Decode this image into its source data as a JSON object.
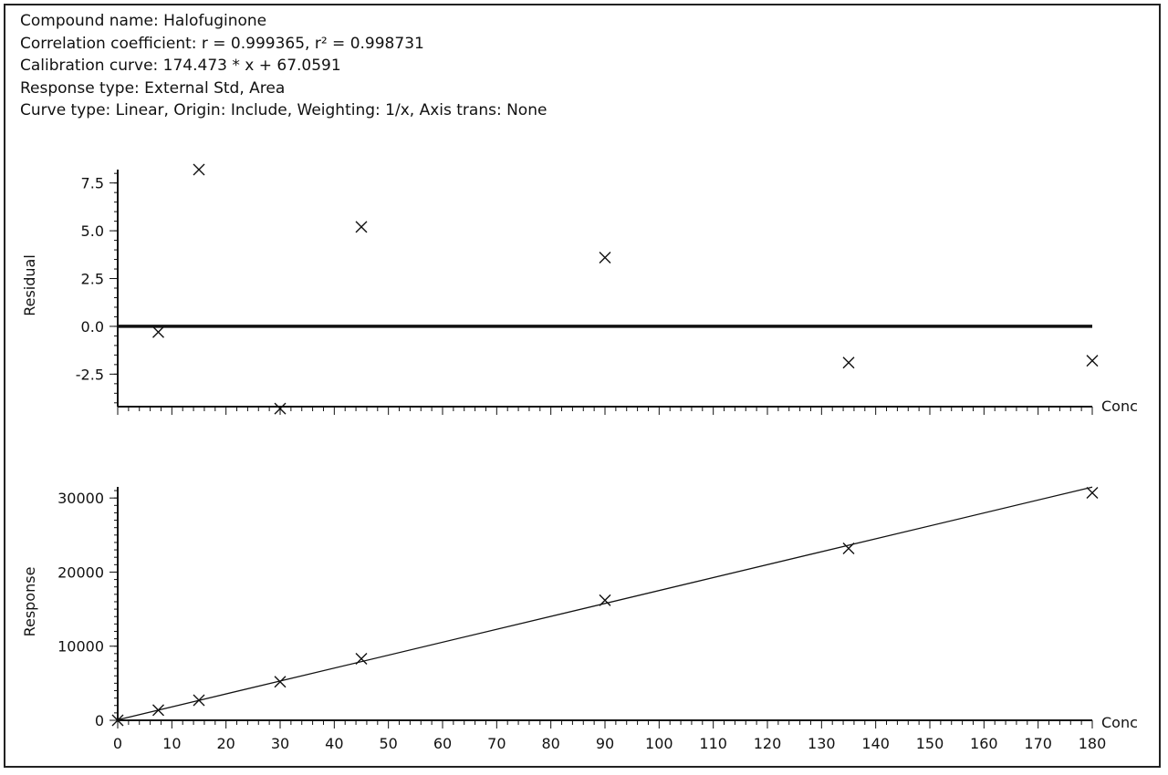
{
  "info": {
    "compound": "Compound name: Halofuginone",
    "correlation": "Correlation coefficient: r = 0.999365, r² = 0.998731",
    "calibration": "Calibration curve: 174.473 * x + 67.0591",
    "response_type": "Response type: External Std, Area",
    "curve_type": "Curve type: Linear, Origin: Include, Weighting: 1/x, Axis trans: None"
  },
  "chart_data": [
    {
      "type": "scatter",
      "title": "",
      "xlabel": "Conc",
      "ylabel": "Residual",
      "xlim": [
        0,
        180
      ],
      "ylim": [
        -4.2,
        8.2
      ],
      "yticks": [
        7.5,
        5.0,
        2.5,
        0.0,
        -2.5
      ],
      "ytick_labels": [
        "7.5",
        "5.0",
        "2.5",
        "0.0",
        "-2.5"
      ],
      "zero_line": 0,
      "marker": "x",
      "points": [
        {
          "x": 7.5,
          "y": -0.3
        },
        {
          "x": 15,
          "y": 8.2
        },
        {
          "x": 30,
          "y": -4.3
        },
        {
          "x": 45,
          "y": 5.2
        },
        {
          "x": 90,
          "y": 3.6
        },
        {
          "x": 135,
          "y": -1.9
        },
        {
          "x": 180,
          "y": -1.8
        }
      ]
    },
    {
      "type": "scatter",
      "title": "",
      "xlabel": "Conc",
      "ylabel": "Response",
      "xlim": [
        0,
        180
      ],
      "ylim": [
        0,
        31500
      ],
      "yticks": [
        30000,
        20000,
        10000,
        0
      ],
      "ytick_labels": [
        "30000",
        "20000",
        "10000",
        "0"
      ],
      "xticks": [
        0,
        10,
        20,
        30,
        40,
        50,
        60,
        70,
        80,
        90,
        100,
        110,
        120,
        130,
        140,
        150,
        160,
        170,
        180
      ],
      "xtick_labels": [
        "0",
        "10",
        "20",
        "30",
        "40",
        "50",
        "60",
        "70",
        "80",
        "90",
        "100",
        "110",
        "120",
        "130",
        "140",
        "150",
        "160",
        "170",
        "180"
      ],
      "fit_line": {
        "slope": 174.473,
        "intercept": 67.0591
      },
      "marker": "x",
      "points": [
        {
          "x": 0,
          "y": 0
        },
        {
          "x": 7.5,
          "y": 1370
        },
        {
          "x": 15,
          "y": 2700
        },
        {
          "x": 30,
          "y": 5200
        },
        {
          "x": 45,
          "y": 8300
        },
        {
          "x": 90,
          "y": 16200
        },
        {
          "x": 135,
          "y": 23200
        },
        {
          "x": 180,
          "y": 30700
        }
      ]
    }
  ]
}
